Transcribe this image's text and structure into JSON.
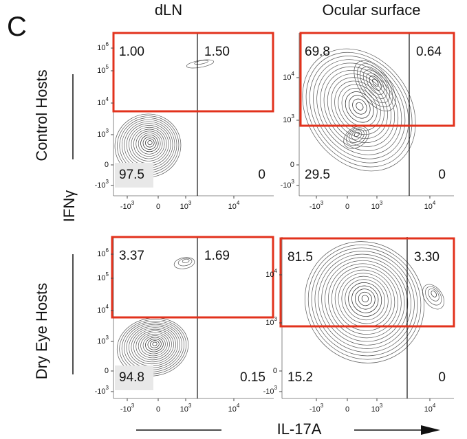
{
  "panel_label": "C",
  "columns": [
    "dLN",
    "Ocular surface"
  ],
  "rows": [
    "Control Hosts",
    "Dry Eye Hosts"
  ],
  "y_axis_label": "IFNγ",
  "x_axis_label": "IL-17A",
  "plots": [
    {
      "quadrants": {
        "upper_left": "1.00",
        "upper_right": "1.50",
        "lower_left": "97.5",
        "lower_right": "0"
      },
      "y_ticks": [
        {
          "mantissa": "10",
          "exponent": "6"
        },
        {
          "mantissa": "10",
          "exponent": "5"
        },
        {
          "mantissa": "10",
          "exponent": "4"
        },
        {
          "mantissa": "10",
          "exponent": "3"
        },
        {
          "mantissa": "0"
        },
        {
          "mantissa": "-10",
          "exponent": "3"
        }
      ],
      "x_ticks": [
        {
          "mantissa": "-10",
          "exponent": "3"
        },
        {
          "mantissa": "0"
        },
        {
          "mantissa": "10",
          "exponent": "3"
        },
        {
          "mantissa": "10",
          "exponent": "4"
        }
      ]
    },
    {
      "quadrants": {
        "upper_left": "69.8",
        "upper_right": "0.64",
        "lower_left": "29.5",
        "lower_right": "0"
      },
      "y_ticks": [
        {
          "mantissa": "10",
          "exponent": "4"
        },
        {
          "mantissa": "10",
          "exponent": "3"
        },
        {
          "mantissa": "0"
        },
        {
          "mantissa": "-10",
          "exponent": "3"
        }
      ],
      "x_ticks": [
        {
          "mantissa": "-10",
          "exponent": "3"
        },
        {
          "mantissa": "0"
        },
        {
          "mantissa": "10",
          "exponent": "3"
        },
        {
          "mantissa": "10",
          "exponent": "4"
        }
      ]
    },
    {
      "quadrants": {
        "upper_left": "3.37",
        "upper_right": "1.69",
        "lower_left": "94.8",
        "lower_right": "0.15"
      },
      "y_ticks": [
        {
          "mantissa": "10",
          "exponent": "6"
        },
        {
          "mantissa": "10",
          "exponent": "5"
        },
        {
          "mantissa": "10",
          "exponent": "4"
        },
        {
          "mantissa": "10",
          "exponent": "3"
        },
        {
          "mantissa": "0"
        },
        {
          "mantissa": "-10",
          "exponent": "3"
        }
      ],
      "x_ticks": [
        {
          "mantissa": "-10",
          "exponent": "3"
        },
        {
          "mantissa": "0"
        },
        {
          "mantissa": "10",
          "exponent": "3"
        },
        {
          "mantissa": "10",
          "exponent": "4"
        }
      ]
    },
    {
      "quadrants": {
        "upper_left": "81.5",
        "upper_right": "3.30",
        "lower_left": "15.2",
        "lower_right": "0"
      },
      "y_ticks": [
        {
          "mantissa": "10",
          "exponent": "4"
        },
        {
          "mantissa": "10",
          "exponent": "3"
        },
        {
          "mantissa": "0"
        },
        {
          "mantissa": "-10",
          "exponent": "3"
        }
      ],
      "x_ticks": [
        {
          "mantissa": "-10",
          "exponent": "3"
        },
        {
          "mantissa": "0"
        },
        {
          "mantissa": "10",
          "exponent": "3"
        },
        {
          "mantissa": "10",
          "exponent": "4"
        }
      ]
    }
  ]
}
